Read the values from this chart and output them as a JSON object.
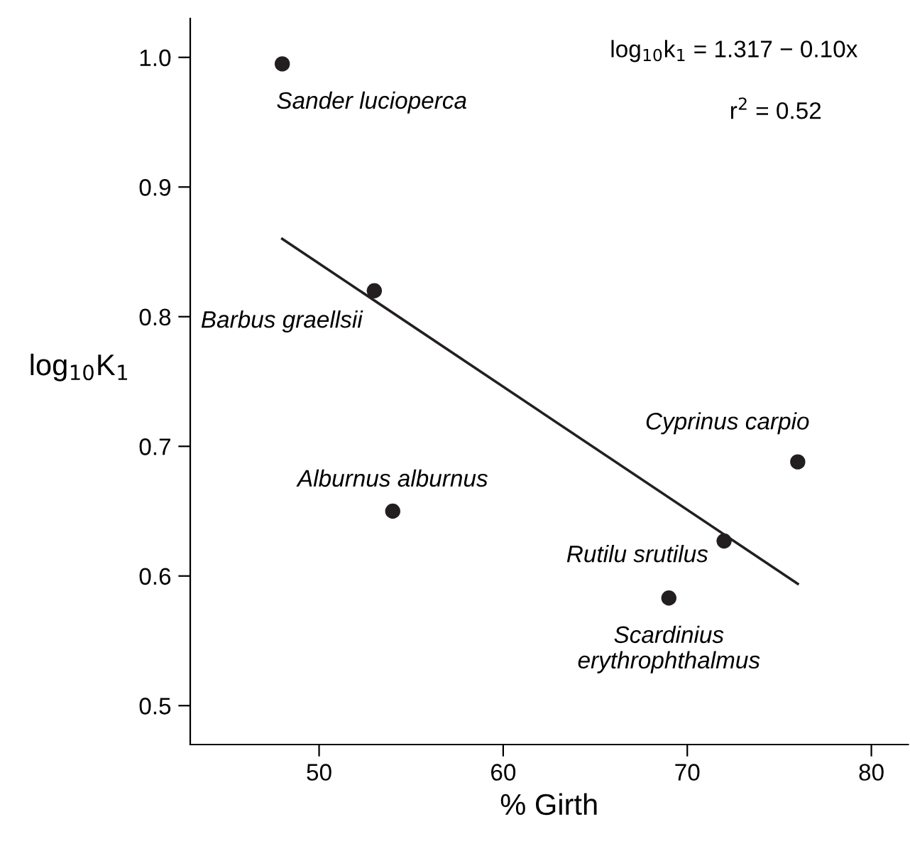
{
  "chart_data": {
    "type": "scatter",
    "xlabel": "% Girth",
    "ylabel": "log$_{10}$K$_{1}$",
    "xlim": [
      43,
      82
    ],
    "ylim": [
      0.47,
      1.03
    ],
    "xticks": [
      50,
      60,
      70,
      80
    ],
    "yticks": [
      {
        "value": 0.5,
        "label": "0.5"
      },
      {
        "value": 0.6,
        "label": "0.6"
      },
      {
        "value": 0.7,
        "label": "0.7"
      },
      {
        "value": 0.8,
        "label": "0.8"
      },
      {
        "value": 0.9,
        "label": "0.9"
      },
      {
        "value": 1.0,
        "label": "1.0"
      }
    ],
    "grid": false,
    "legend": false,
    "series": [
      {
        "marker": "circle",
        "color": "#231f20",
        "x": [
          48,
          53,
          54,
          72,
          69,
          76
        ],
        "values": [
          0.995,
          0.82,
          0.65,
          0.627,
          0.583,
          0.688
        ]
      },
      {
        "type": "line",
        "marker": "none",
        "color": "#231f20",
        "line_style": "solid",
        "x": [
          48,
          76
        ],
        "values": [
          0.86,
          0.594
        ]
      }
    ],
    "annotations": [
      {
        "text": "Sander lucioperca",
        "x": 48,
        "y": 0.995
      },
      {
        "text": "Barbus graellsii",
        "x": 53,
        "y": 0.82
      },
      {
        "text": "Alburnus alburnus",
        "x": 54,
        "y": 0.65
      },
      {
        "text": "Rutilu srutilus",
        "x": 72,
        "y": 0.627
      },
      {
        "text": "Scardinius\nerythrophthalmus",
        "x": 69,
        "y": 0.583
      },
      {
        "text": "Cyprinus carpio",
        "x": 76,
        "y": 0.688
      },
      "log$_{10}$k$_{1}$ = 1.317 − 0.10x",
      "r$^{2}$ = 0.52"
    ]
  }
}
